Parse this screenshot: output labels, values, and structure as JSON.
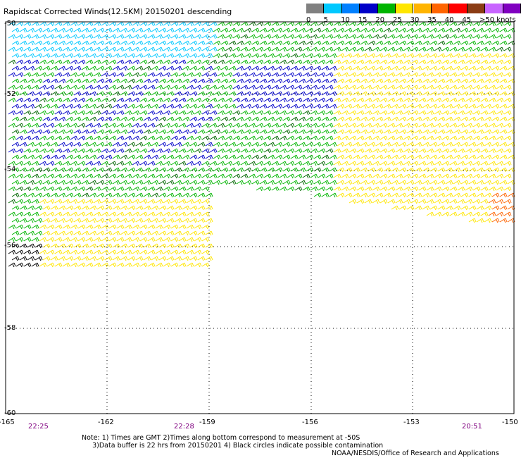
{
  "title": "Rapidscat Corrected Winds(12.5KM) 20150201 descending",
  "legend": {
    "colors": [
      "#808080",
      "#00c8ff",
      "#0080ff",
      "#0000c8",
      "#00b400",
      "#ffe600",
      "#ffb400",
      "#ff6400",
      "#ff0000",
      "#8b3c14",
      "#c864ff",
      "#8000c0"
    ],
    "labels": [
      "0",
      "5",
      "10",
      "15",
      "20",
      "25",
      "30",
      "35",
      "40",
      "45",
      ">50 knots"
    ]
  },
  "axes": {
    "lat_labels": [
      "-50",
      "-52",
      "-54",
      "-56",
      "-58",
      "-60"
    ],
    "lon_labels": [
      "-165",
      "-162",
      "-159",
      "-156",
      "-153",
      "-150"
    ]
  },
  "times": [
    "22:25",
    "22:28",
    "20:51"
  ],
  "notes": {
    "line1": "Note: 1) Times are GMT 2)Times along bottom correspond to measurement at -50S",
    "line2": "3)Data buffer is 22 hrs from 20150201 4) Black circles indicate possible contamination"
  },
  "credit": "NOAA/NESDIS/Office of Research and Applications"
}
